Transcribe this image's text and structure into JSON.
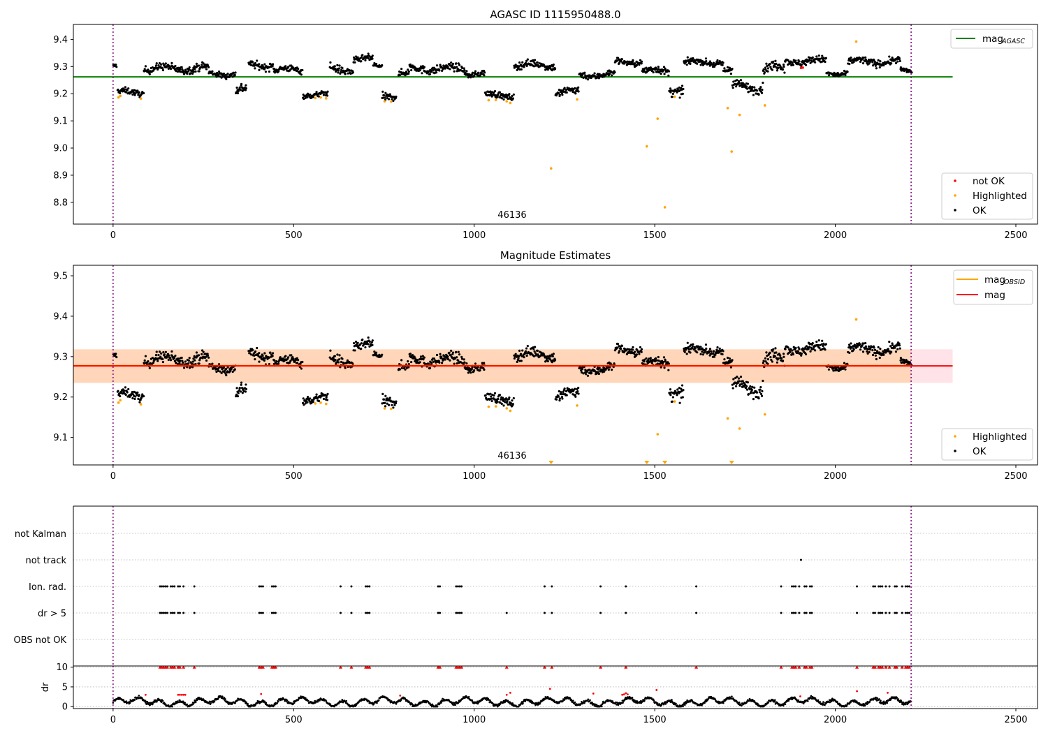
{
  "chart_data": [
    {
      "type": "scatter",
      "title": "AGASC ID 1115950488.0",
      "xlim": [
        -110,
        2560
      ],
      "ylim": [
        8.72,
        9.455
      ],
      "xticks": [
        0,
        500,
        1000,
        1500,
        2000,
        2500
      ],
      "yticks": [
        8.8,
        8.9,
        9.0,
        9.1,
        9.2,
        9.3,
        9.4
      ],
      "obsid_label": "46136",
      "obsid_x": 1105,
      "vlines": [
        0,
        2210
      ],
      "hlines": [
        {
          "name": "mag_AGASC",
          "y": 9.262,
          "x0": -110,
          "x1": 2325,
          "color": "#008000"
        }
      ],
      "legend_lines": [
        {
          "label": "mag",
          "sub": "AGASC",
          "color": "#008000"
        }
      ],
      "legend_points": [
        {
          "label": "not OK",
          "color": "#ff0000"
        },
        {
          "label": "Highlighted",
          "color": "#ffa500"
        },
        {
          "label": "OK",
          "color": "#000000"
        }
      ],
      "highlighted": [
        [
          15,
          9.186
        ],
        [
          20,
          9.192
        ],
        [
          77,
          9.182
        ],
        [
          560,
          9.184
        ],
        [
          575,
          9.186
        ],
        [
          590,
          9.183
        ],
        [
          752,
          9.172
        ],
        [
          770,
          9.171
        ],
        [
          1040,
          9.176
        ],
        [
          1060,
          9.177
        ],
        [
          1090,
          9.172
        ],
        [
          1100,
          9.166
        ],
        [
          1285,
          9.179
        ],
        [
          1213,
          8.925
        ],
        [
          1478,
          9.006
        ],
        [
          1508,
          9.108
        ],
        [
          1528,
          8.782
        ],
        [
          1702,
          9.147
        ],
        [
          1713,
          8.987
        ],
        [
          1735,
          9.122
        ],
        [
          1805,
          9.157
        ],
        [
          1555,
          9.189
        ],
        [
          2058,
          9.392
        ]
      ],
      "not_ok": [
        [
          1905,
          9.295
        ],
        [
          1910,
          9.296
        ]
      ],
      "segments": [
        [
          0,
          10,
          9.302,
          0.006
        ],
        [
          12,
          85,
          9.205,
          0.011
        ],
        [
          85,
          265,
          9.293,
          0.014
        ],
        [
          265,
          340,
          9.273,
          0.011
        ],
        [
          340,
          370,
          9.212,
          0.018
        ],
        [
          375,
          445,
          9.305,
          0.013
        ],
        [
          445,
          525,
          9.287,
          0.012
        ],
        [
          525,
          595,
          9.197,
          0.01
        ],
        [
          600,
          665,
          9.29,
          0.015
        ],
        [
          665,
          720,
          9.325,
          0.012
        ],
        [
          720,
          745,
          9.302,
          0.01
        ],
        [
          745,
          785,
          9.195,
          0.014
        ],
        [
          790,
          820,
          9.272,
          0.013
        ],
        [
          820,
          975,
          9.292,
          0.014
        ],
        [
          975,
          1030,
          9.275,
          0.011
        ],
        [
          1030,
          1110,
          9.193,
          0.012
        ],
        [
          1110,
          1225,
          9.305,
          0.013
        ],
        [
          1225,
          1290,
          9.205,
          0.016
        ],
        [
          1290,
          1390,
          9.27,
          0.012
        ],
        [
          1390,
          1465,
          9.317,
          0.011
        ],
        [
          1465,
          1540,
          9.283,
          0.014
        ],
        [
          1540,
          1580,
          9.215,
          0.017
        ],
        [
          1580,
          1690,
          9.315,
          0.011
        ],
        [
          1690,
          1715,
          9.285,
          0.014
        ],
        [
          1715,
          1800,
          9.225,
          0.017
        ],
        [
          1800,
          1860,
          9.295,
          0.018
        ],
        [
          1860,
          1975,
          9.32,
          0.013
        ],
        [
          1975,
          2035,
          9.275,
          0.01
        ],
        [
          2035,
          2180,
          9.318,
          0.013
        ],
        [
          2180,
          2212,
          9.283,
          0.008
        ]
      ]
    },
    {
      "type": "scatter",
      "title": "Magnitude Estimates",
      "xlim": [
        -110,
        2560
      ],
      "ylim": [
        9.032,
        9.526
      ],
      "xticks": [
        0,
        500,
        1000,
        1500,
        2000,
        2500
      ],
      "yticks": [
        9.1,
        9.2,
        9.3,
        9.4,
        9.5
      ],
      "obsid_label": "46136",
      "obsid_x": 1105,
      "vlines": [
        0,
        2210
      ],
      "band": {
        "y0": 9.235,
        "y1": 9.318,
        "x0": -110,
        "x1": 2325
      },
      "hlines": [
        {
          "name": "mag_OBSID",
          "y": 9.278,
          "x0": -110,
          "x1": 2210,
          "color": "#ffa500"
        },
        {
          "name": "mag",
          "y": 9.277,
          "x0": -110,
          "x1": 2325,
          "color": "#ff0000"
        }
      ],
      "legend_lines": [
        {
          "label": "mag",
          "sub": "OBSID",
          "color": "#ffa500"
        },
        {
          "label": "mag",
          "sub": "",
          "color": "#ff0000"
        }
      ],
      "legend_points": [
        {
          "label": "Highlighted",
          "color": "#ffa500"
        },
        {
          "label": "OK",
          "color": "#000000"
        }
      ],
      "highlighted": [
        [
          15,
          9.186
        ],
        [
          20,
          9.192
        ],
        [
          77,
          9.182
        ],
        [
          560,
          9.184
        ],
        [
          575,
          9.186
        ],
        [
          590,
          9.183
        ],
        [
          752,
          9.172
        ],
        [
          770,
          9.171
        ],
        [
          1040,
          9.176
        ],
        [
          1060,
          9.177
        ],
        [
          1090,
          9.172
        ],
        [
          1100,
          9.166
        ],
        [
          1285,
          9.179
        ],
        [
          1508,
          9.108
        ],
        [
          1702,
          9.147
        ],
        [
          1735,
          9.122
        ],
        [
          1805,
          9.157
        ],
        [
          1555,
          9.189
        ],
        [
          2058,
          9.392
        ]
      ],
      "offscale_markers": [
        1213,
        1478,
        1528,
        1713
      ],
      "segments": [
        [
          0,
          10,
          9.302,
          0.006
        ],
        [
          12,
          85,
          9.205,
          0.011
        ],
        [
          85,
          265,
          9.293,
          0.014
        ],
        [
          265,
          340,
          9.273,
          0.011
        ],
        [
          340,
          370,
          9.212,
          0.018
        ],
        [
          375,
          445,
          9.305,
          0.013
        ],
        [
          445,
          525,
          9.287,
          0.012
        ],
        [
          525,
          595,
          9.197,
          0.01
        ],
        [
          600,
          665,
          9.29,
          0.015
        ],
        [
          665,
          720,
          9.325,
          0.012
        ],
        [
          720,
          745,
          9.302,
          0.01
        ],
        [
          745,
          785,
          9.195,
          0.014
        ],
        [
          790,
          820,
          9.272,
          0.013
        ],
        [
          820,
          975,
          9.292,
          0.014
        ],
        [
          975,
          1030,
          9.275,
          0.011
        ],
        [
          1030,
          1110,
          9.193,
          0.012
        ],
        [
          1110,
          1225,
          9.305,
          0.013
        ],
        [
          1225,
          1290,
          9.205,
          0.016
        ],
        [
          1290,
          1390,
          9.27,
          0.012
        ],
        [
          1390,
          1465,
          9.317,
          0.011
        ],
        [
          1465,
          1540,
          9.283,
          0.014
        ],
        [
          1540,
          1580,
          9.215,
          0.017
        ],
        [
          1580,
          1690,
          9.315,
          0.011
        ],
        [
          1690,
          1715,
          9.285,
          0.014
        ],
        [
          1715,
          1800,
          9.225,
          0.017
        ],
        [
          1800,
          1860,
          9.295,
          0.018
        ],
        [
          1860,
          1975,
          9.32,
          0.013
        ],
        [
          1975,
          2035,
          9.275,
          0.01
        ],
        [
          2035,
          2180,
          9.318,
          0.013
        ],
        [
          2180,
          2212,
          9.283,
          0.008
        ]
      ]
    },
    {
      "type": "scatter",
      "title": "",
      "xlim": [
        -110,
        2560
      ],
      "categories": [
        "not Kalman",
        "not track",
        "Ion. rad.",
        "dr > 5",
        "OBS not OK"
      ],
      "vlines": [
        0,
        2210
      ],
      "flags": {
        "not track": [
          1905
        ],
        "Ion. rad.": [
          130,
          135,
          140,
          145,
          150,
          160,
          165,
          170,
          180,
          185,
          195,
          225,
          405,
          410,
          415,
          440,
          445,
          450,
          630,
          660,
          700,
          705,
          710,
          900,
          905,
          950,
          955,
          960,
          965,
          1195,
          1215,
          1350,
          1420,
          1615,
          1850,
          1880,
          1885,
          1890,
          1900,
          1915,
          1920,
          1930,
          1935,
          2060,
          2105,
          2110,
          2120,
          2125,
          2130,
          2140,
          2150,
          2165,
          2170,
          2185,
          2195,
          2200,
          2205
        ],
        "dr > 5": [
          130,
          135,
          140,
          145,
          150,
          160,
          165,
          170,
          180,
          185,
          195,
          225,
          405,
          410,
          415,
          440,
          445,
          450,
          630,
          660,
          700,
          705,
          710,
          900,
          905,
          950,
          955,
          960,
          965,
          1090,
          1195,
          1215,
          1350,
          1420,
          1615,
          1850,
          1880,
          1885,
          1890,
          1900,
          1915,
          1920,
          1930,
          1935,
          2060,
          2105,
          2110,
          2120,
          2125,
          2130,
          2140,
          2150,
          2165,
          2170,
          2185,
          2195,
          2200,
          2205
        ]
      }
    },
    {
      "type": "scatter",
      "title": "",
      "xlim": [
        -110,
        2560
      ],
      "ylim": [
        -0.5,
        10.3
      ],
      "ylabel": "dr",
      "xticks": [
        0,
        500,
        1000,
        1500,
        2000,
        2500
      ],
      "yticks": [
        0,
        5,
        10
      ],
      "vlines": [
        0,
        2210
      ],
      "capped_at_10": [
        130,
        135,
        140,
        145,
        150,
        160,
        165,
        170,
        180,
        185,
        195,
        225,
        405,
        410,
        415,
        440,
        445,
        450,
        630,
        660,
        700,
        705,
        710,
        900,
        905,
        950,
        955,
        960,
        965,
        1090,
        1195,
        1215,
        1350,
        1420,
        1615,
        1850,
        1880,
        1885,
        1890,
        1900,
        1915,
        1920,
        1930,
        1935,
        2060,
        2105,
        2110,
        2120,
        2125,
        2130,
        2140,
        2150,
        2165,
        2170,
        2185,
        2195,
        2200,
        2205
      ],
      "red_points": [
        [
          90,
          3.0
        ],
        [
          180,
          3.0
        ],
        [
          185,
          3.0
        ],
        [
          190,
          3.0
        ],
        [
          195,
          3.0
        ],
        [
          200,
          3.0
        ],
        [
          410,
          3.2
        ],
        [
          795,
          2.8
        ],
        [
          1090,
          3.0
        ],
        [
          1100,
          3.5
        ],
        [
          1210,
          4.5
        ],
        [
          1330,
          3.3
        ],
        [
          1410,
          3.0
        ],
        [
          1415,
          3.1
        ],
        [
          1420,
          3.4
        ],
        [
          1425,
          3.1
        ],
        [
          1505,
          4.2
        ],
        [
          1903,
          2.6
        ],
        [
          2060,
          3.9
        ],
        [
          2145,
          3.5
        ]
      ]
    }
  ]
}
